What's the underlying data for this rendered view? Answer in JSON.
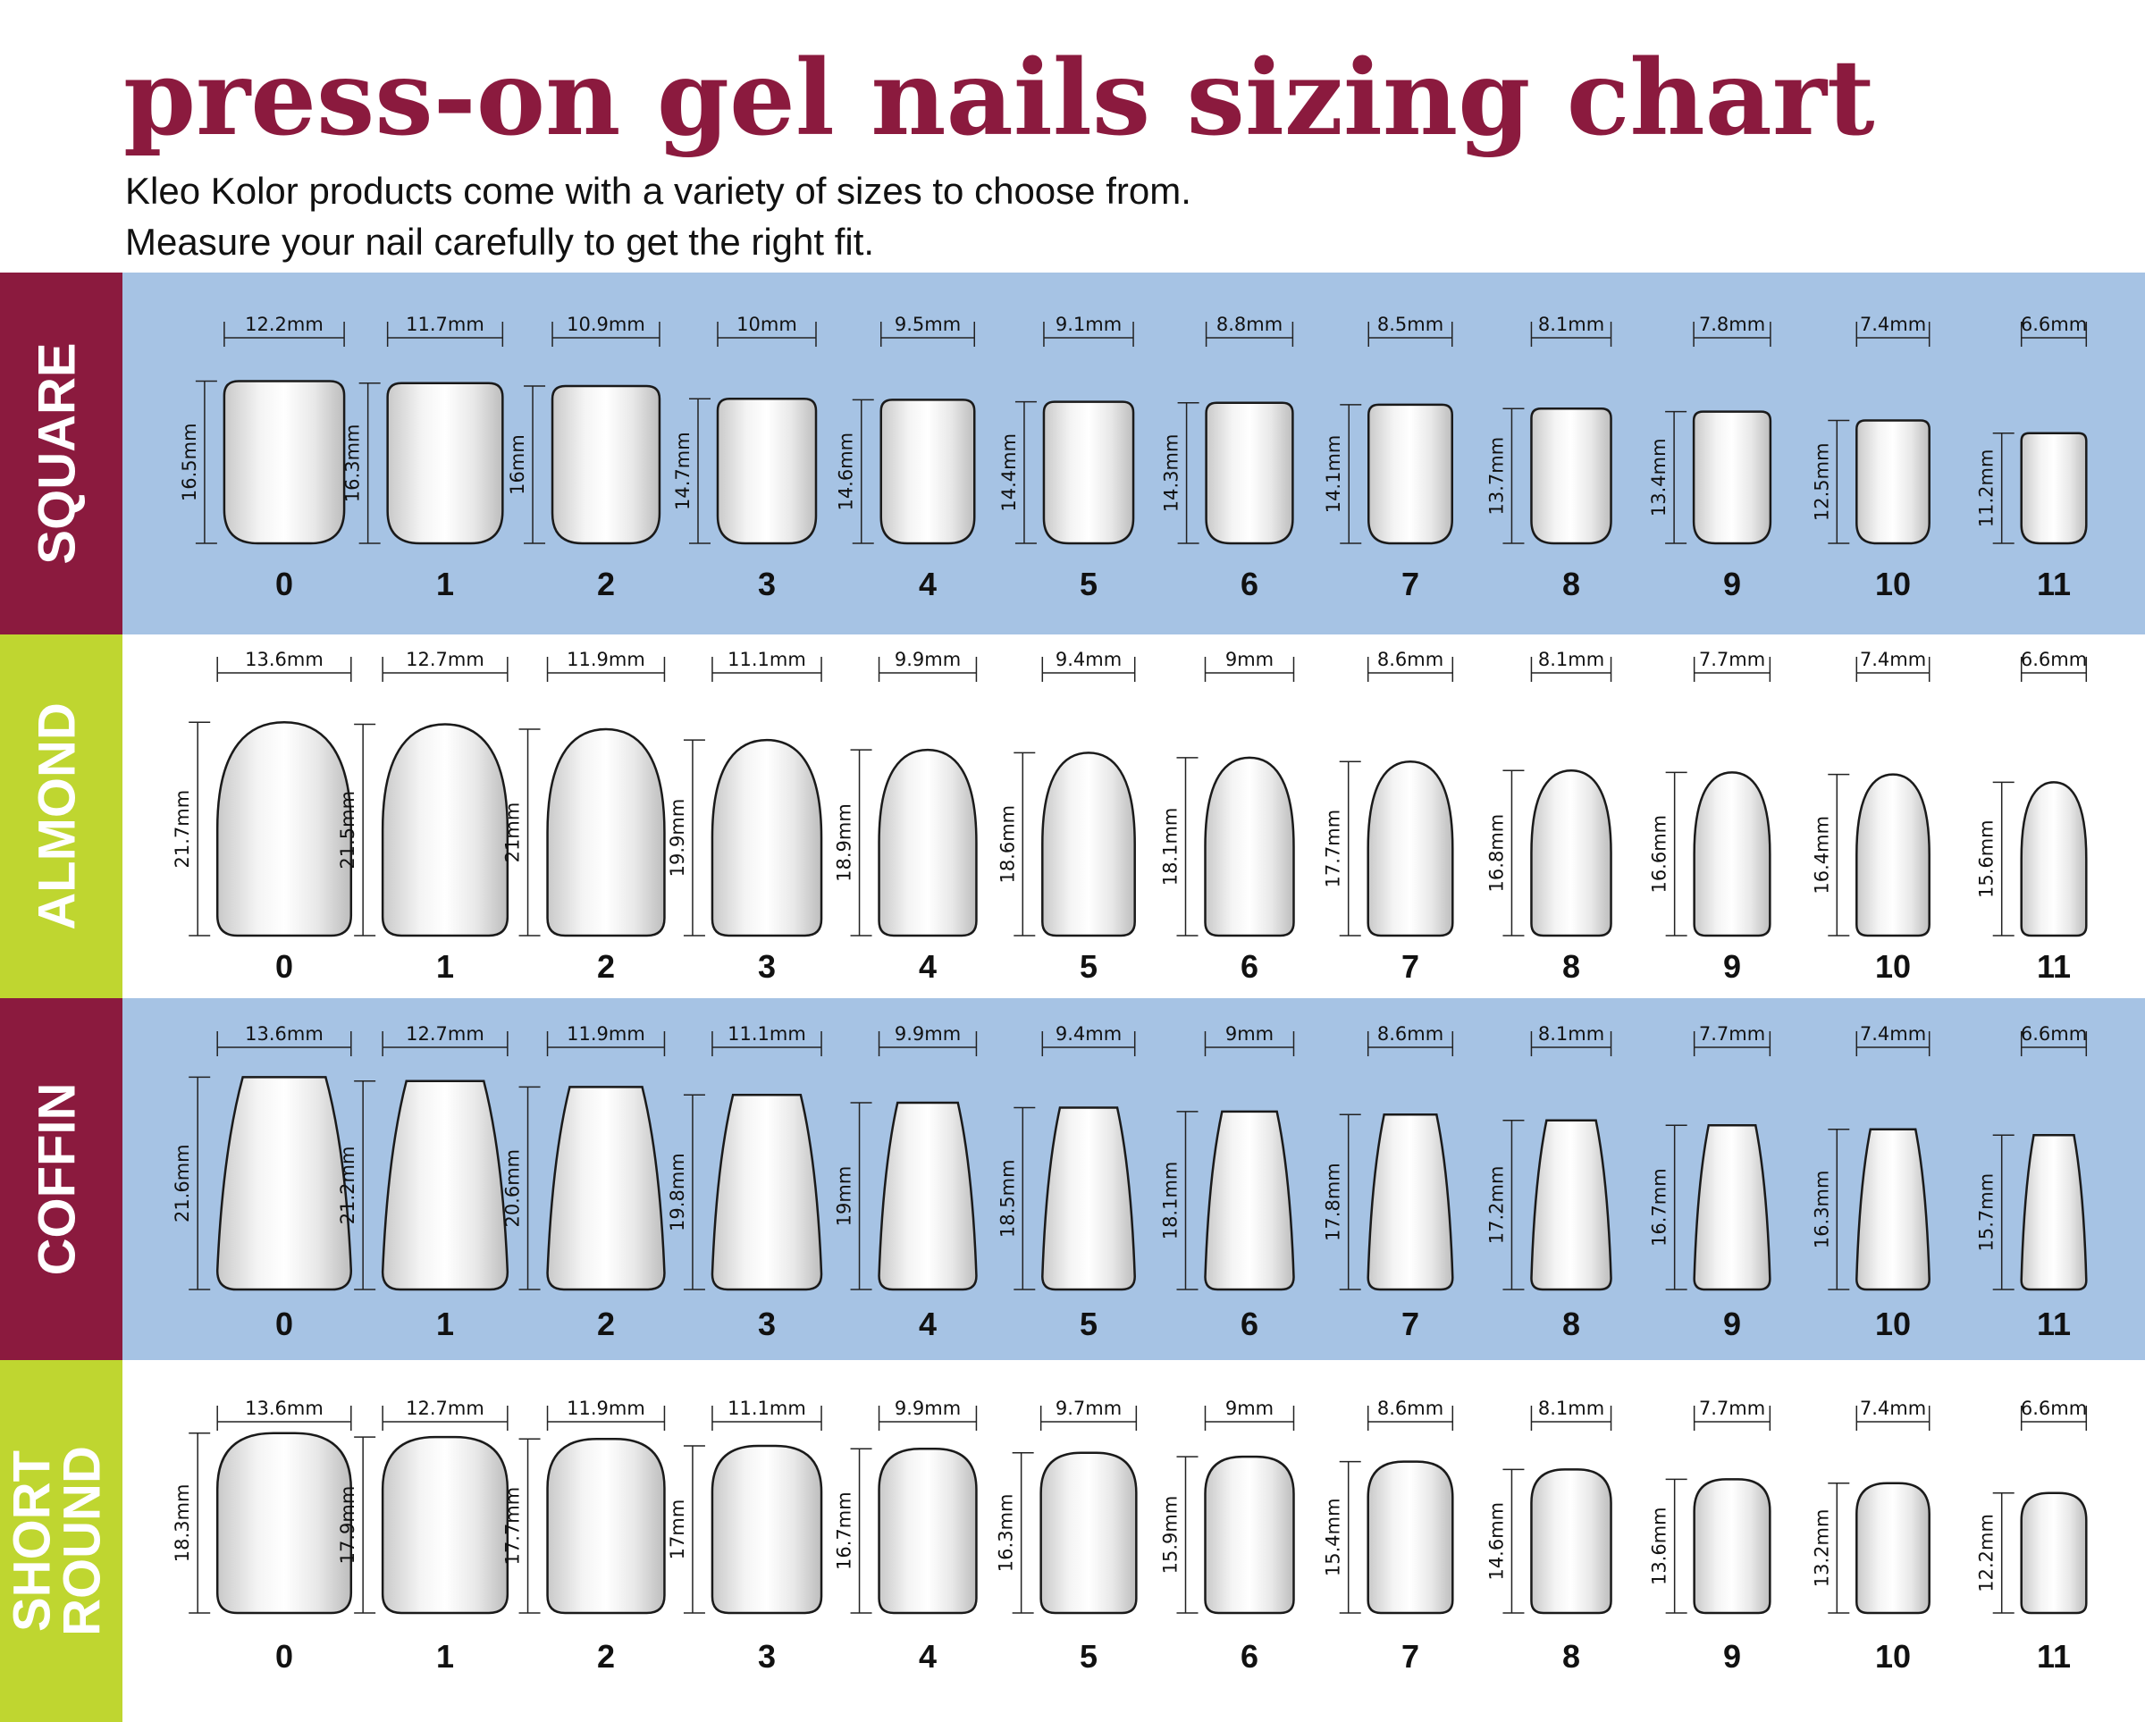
{
  "header": {
    "title": "press-on gel nails sizing chart",
    "subtitle_lines": [
      "Kleo Kolor products come with a variety of sizes to choose from.",
      "Measure your nail carefully to get the right fit."
    ]
  },
  "sections": [
    {
      "name_lines": [
        "SQUARE"
      ],
      "sizes": [
        "0",
        "1",
        "2",
        "3",
        "4",
        "5",
        "6",
        "7",
        "8",
        "9",
        "10",
        "11"
      ],
      "widths": [
        "12.2mm",
        "11.7mm",
        "10.9mm",
        "10mm",
        "9.5mm",
        "9.1mm",
        "8.8mm",
        "8.5mm",
        "8.1mm",
        "7.8mm",
        "7.4mm",
        "6.6mm"
      ],
      "lengths": [
        "16.5mm",
        "16.3mm",
        "16mm",
        "14.7mm",
        "14.6mm",
        "14.4mm",
        "14.3mm",
        "14.1mm",
        "13.7mm",
        "13.4mm",
        "12.5mm",
        "11.2mm"
      ]
    },
    {
      "name_lines": [
        "ALMOND"
      ],
      "sizes": [
        "0",
        "1",
        "2",
        "3",
        "4",
        "5",
        "6",
        "7",
        "8",
        "9",
        "10",
        "11"
      ],
      "widths": [
        "13.6mm",
        "12.7mm",
        "11.9mm",
        "11.1mm",
        "9.9mm",
        "9.4mm",
        "9mm",
        "8.6mm",
        "8.1mm",
        "7.7mm",
        "7.4mm",
        "6.6mm"
      ],
      "lengths": [
        "21.7mm",
        "21.5mm",
        "21mm",
        "19.9mm",
        "18.9mm",
        "18.6mm",
        "18.1mm",
        "17.7mm",
        "16.8mm",
        "16.6mm",
        "16.4mm",
        "15.6mm"
      ]
    },
    {
      "name_lines": [
        "COFFIN"
      ],
      "sizes": [
        "0",
        "1",
        "2",
        "3",
        "4",
        "5",
        "6",
        "7",
        "8",
        "9",
        "10",
        "11"
      ],
      "widths": [
        "13.6mm",
        "12.7mm",
        "11.9mm",
        "11.1mm",
        "9.9mm",
        "9.4mm",
        "9mm",
        "8.6mm",
        "8.1mm",
        "7.7mm",
        "7.4mm",
        "6.6mm"
      ],
      "lengths": [
        "21.6mm",
        "21.2mm",
        "20.6mm",
        "19.8mm",
        "19mm",
        "18.5mm",
        "18.1mm",
        "17.8mm",
        "17.2mm",
        "16.7mm",
        "16.3mm",
        "15.7mm"
      ]
    },
    {
      "name_lines": [
        "SHORT",
        "ROUND"
      ],
      "sizes": [
        "0",
        "1",
        "2",
        "3",
        "4",
        "5",
        "6",
        "7",
        "8",
        "9",
        "10",
        "11"
      ],
      "widths": [
        "13.6mm",
        "12.7mm",
        "11.9mm",
        "11.1mm",
        "9.9mm",
        "9.7mm",
        "9mm",
        "8.6mm",
        "8.1mm",
        "7.7mm",
        "7.4mm",
        "6.6mm"
      ],
      "lengths": [
        "18.3mm",
        "17.9mm",
        "17.7mm",
        "17mm",
        "16.7mm",
        "16.3mm",
        "15.9mm",
        "15.4mm",
        "14.6mm",
        "13.6mm",
        "13.2mm",
        "12.2mm"
      ]
    }
  ]
}
